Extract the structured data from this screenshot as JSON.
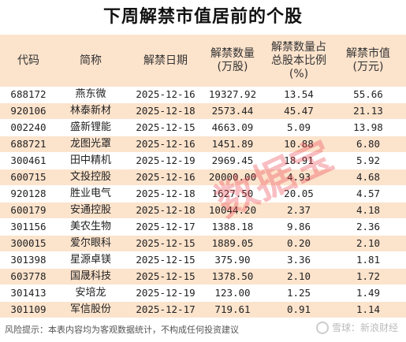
{
  "title": "下周解禁市值居前的个股",
  "headers": [
    "代码",
    "简称",
    "解禁日期",
    "解禁数量\n(万股)",
    "解禁数量占\n总股本比例\n(%)",
    "解禁市值\n(万元)"
  ],
  "rows": [
    [
      "688172",
      "燕东微",
      "2025-12-16",
      "19327.92",
      "13.54",
      "55.66"
    ],
    [
      "920106",
      "林泰新材",
      "2025-12-18",
      "2573.44",
      "45.47",
      "21.13"
    ],
    [
      "002240",
      "盛新锂能",
      "2025-12-15",
      "4663.09",
      "5.09",
      "13.98"
    ],
    [
      "688721",
      "龙图光罩",
      "2025-12-16",
      "1451.89",
      "10.88",
      "6.80"
    ],
    [
      "300461",
      "田中精机",
      "2025-12-19",
      "2969.45",
      "18.91",
      "5.92"
    ],
    [
      "600715",
      "文投控股",
      "2025-12-16",
      "20000.00",
      "4.93",
      "4.68"
    ],
    [
      "920128",
      "胜业电气",
      "2025-12-18",
      "1627.50",
      "20.05",
      "4.57"
    ],
    [
      "600179",
      "安通控股",
      "2025-12-18",
      "10044.20",
      "2.37",
      "4.18"
    ],
    [
      "301156",
      "美农生物",
      "2025-12-17",
      "1388.18",
      "9.86",
      "2.36"
    ],
    [
      "300015",
      "爱尔眼科",
      "2025-12-15",
      "1889.05",
      "0.20",
      "2.10"
    ],
    [
      "301398",
      "星源卓镁",
      "2025-12-15",
      "375.90",
      "3.36",
      "1.81"
    ],
    [
      "603778",
      "国晟科技",
      "2025-12-15",
      "1378.50",
      "2.10",
      "1.72"
    ],
    [
      "301413",
      "安培龙",
      "2025-12-19",
      "123.00",
      "1.25",
      "1.49"
    ],
    [
      "301109",
      "军信股份",
      "2025-12-17",
      "719.61",
      "0.91",
      "1.14"
    ]
  ],
  "footer_note": "风险提示：本表内容均为客观数据统计，不构成任何投资建议",
  "brand": "雪球：新浪财经",
  "watermark": "数据宝",
  "colors": {
    "header_bg": "#fce3cc",
    "stripe_bg": "#fce3cc",
    "watermark": "#eb4650"
  }
}
